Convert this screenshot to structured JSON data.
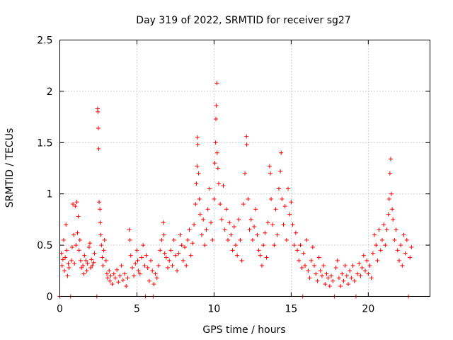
{
  "chart_data": {
    "type": "scatter",
    "title": "Day 319 of 2022, SRMTID for receiver sg27",
    "xlabel": "GPS time / hours",
    "ylabel": "SRMTID / TECUs",
    "xlim": [
      0,
      24
    ],
    "ylim": [
      0,
      2.5
    ],
    "xticks": [
      0,
      5,
      10,
      15,
      20
    ],
    "xtick_labels": [
      "0",
      "5",
      "10",
      "15",
      "20"
    ],
    "yticks": [
      0,
      0.5,
      1,
      1.5,
      2,
      2.5
    ],
    "ytick_labels": [
      "0",
      "0.5",
      "1",
      "1.5",
      "2",
      "2.5"
    ],
    "grid": true,
    "marker": "+",
    "color": "#ff0000",
    "series": [
      {
        "name": "SRMTID",
        "points": [
          [
            0.0,
            0.0
          ],
          [
            0.1,
            0.42
          ],
          [
            0.15,
            0.3
          ],
          [
            0.2,
            0.36
          ],
          [
            0.25,
            0.55
          ],
          [
            0.3,
            0.25
          ],
          [
            0.35,
            0.38
          ],
          [
            0.4,
            0.7
          ],
          [
            0.45,
            0.45
          ],
          [
            0.5,
            0.2
          ],
          [
            0.55,
            0.32
          ],
          [
            0.6,
            0.28
          ],
          [
            0.7,
            0.0
          ],
          [
            0.75,
            0.35
          ],
          [
            0.8,
            0.48
          ],
          [
            0.85,
            0.9
          ],
          [
            0.9,
            0.6
          ],
          [
            0.95,
            0.32
          ],
          [
            1.0,
            0.88
          ],
          [
            1.05,
            0.5
          ],
          [
            1.1,
            0.92
          ],
          [
            1.15,
            0.62
          ],
          [
            1.2,
            0.78
          ],
          [
            1.25,
            0.45
          ],
          [
            1.3,
            0.55
          ],
          [
            1.35,
            0.35
          ],
          [
            1.4,
            0.28
          ],
          [
            1.5,
            0.3
          ],
          [
            1.55,
            0.22
          ],
          [
            1.6,
            0.4
          ],
          [
            1.7,
            0.35
          ],
          [
            1.75,
            0.25
          ],
          [
            1.8,
            0.32
          ],
          [
            1.9,
            0.48
          ],
          [
            1.95,
            0.52
          ],
          [
            2.0,
            0.28
          ],
          [
            2.05,
            0.36
          ],
          [
            2.1,
            0.3
          ],
          [
            2.2,
            0.33
          ],
          [
            2.25,
            0.42
          ],
          [
            2.4,
            0.0
          ],
          [
            2.45,
            1.83
          ],
          [
            2.47,
            1.8
          ],
          [
            2.5,
            1.64
          ],
          [
            2.52,
            1.44
          ],
          [
            2.55,
            0.92
          ],
          [
            2.6,
            0.85
          ],
          [
            2.62,
            0.72
          ],
          [
            2.65,
            0.6
          ],
          [
            2.7,
            0.5
          ],
          [
            2.75,
            0.38
          ],
          [
            2.8,
            0.3
          ],
          [
            2.85,
            0.45
          ],
          [
            2.9,
            0.55
          ],
          [
            3.0,
            0.35
          ],
          [
            3.05,
            0.22
          ],
          [
            3.1,
            0.18
          ],
          [
            3.2,
            0.25
          ],
          [
            3.25,
            0.15
          ],
          [
            3.3,
            0.2
          ],
          [
            3.4,
            0.12
          ],
          [
            3.5,
            0.22
          ],
          [
            3.6,
            0.18
          ],
          [
            3.7,
            0.26
          ],
          [
            3.8,
            0.14
          ],
          [
            3.9,
            0.2
          ],
          [
            4.0,
            0.3
          ],
          [
            4.1,
            0.16
          ],
          [
            4.2,
            0.22
          ],
          [
            4.3,
            0.1
          ],
          [
            4.4,
            0.18
          ],
          [
            4.5,
            0.65
          ],
          [
            4.55,
            0.55
          ],
          [
            4.6,
            0.4
          ],
          [
            4.7,
            0.28
          ],
          [
            4.8,
            0.2
          ],
          [
            4.9,
            0.32
          ],
          [
            5.0,
            0.45
          ],
          [
            5.05,
            0.35
          ],
          [
            5.1,
            0.25
          ],
          [
            5.2,
            0.22
          ],
          [
            5.3,
            0.38
          ],
          [
            5.4,
            0.5
          ],
          [
            5.5,
            0.3
          ],
          [
            5.55,
            0.0
          ],
          [
            5.6,
            0.4
          ],
          [
            5.7,
            0.28
          ],
          [
            5.8,
            0.15
          ],
          [
            5.9,
            0.35
          ],
          [
            6.0,
            0.25
          ],
          [
            6.05,
            0.0
          ],
          [
            6.1,
            0.12
          ],
          [
            6.2,
            0.22
          ],
          [
            6.3,
            0.18
          ],
          [
            6.4,
            0.3
          ],
          [
            6.5,
            0.45
          ],
          [
            6.6,
            0.55
          ],
          [
            6.7,
            0.72
          ],
          [
            6.75,
            0.6
          ],
          [
            6.8,
            0.42
          ],
          [
            6.9,
            0.38
          ],
          [
            7.0,
            0.28
          ],
          [
            7.1,
            0.35
          ],
          [
            7.2,
            0.45
          ],
          [
            7.3,
            0.3
          ],
          [
            7.4,
            0.55
          ],
          [
            7.5,
            0.4
          ],
          [
            7.6,
            0.25
          ],
          [
            7.7,
            0.42
          ],
          [
            7.8,
            0.6
          ],
          [
            7.9,
            0.5
          ],
          [
            8.0,
            0.35
          ],
          [
            8.1,
            0.48
          ],
          [
            8.2,
            0.3
          ],
          [
            8.3,
            0.55
          ],
          [
            8.4,
            0.65
          ],
          [
            8.5,
            0.4
          ],
          [
            8.6,
            0.52
          ],
          [
            8.7,
            0.7
          ],
          [
            8.8,
            0.9
          ],
          [
            8.85,
            1.1
          ],
          [
            8.9,
            1.27
          ],
          [
            8.92,
            1.55
          ],
          [
            8.95,
            1.48
          ],
          [
            9.0,
            1.2
          ],
          [
            9.05,
            0.95
          ],
          [
            9.1,
            0.8
          ],
          [
            9.2,
            0.6
          ],
          [
            9.3,
            0.75
          ],
          [
            9.4,
            0.5
          ],
          [
            9.5,
            0.65
          ],
          [
            9.6,
            0.85
          ],
          [
            9.7,
            1.05
          ],
          [
            9.8,
            0.72
          ],
          [
            9.9,
            0.55
          ],
          [
            10.0,
            0.95
          ],
          [
            10.05,
            1.3
          ],
          [
            10.1,
            1.5
          ],
          [
            10.12,
            1.73
          ],
          [
            10.15,
            1.86
          ],
          [
            10.18,
            2.08
          ],
          [
            10.2,
            1.4
          ],
          [
            10.25,
            1.25
          ],
          [
            10.3,
            1.1
          ],
          [
            10.4,
            0.9
          ],
          [
            10.5,
            0.75
          ],
          [
            10.6,
            1.08
          ],
          [
            10.7,
            0.65
          ],
          [
            10.8,
            0.85
          ],
          [
            10.9,
            0.55
          ],
          [
            11.0,
            0.72
          ],
          [
            11.1,
            0.6
          ],
          [
            11.2,
            0.45
          ],
          [
            11.3,
            0.68
          ],
          [
            11.4,
            0.5
          ],
          [
            11.5,
            0.4
          ],
          [
            11.6,
            0.75
          ],
          [
            11.7,
            0.55
          ],
          [
            11.8,
            0.35
          ],
          [
            11.9,
            0.9
          ],
          [
            12.0,
            1.2
          ],
          [
            12.1,
            1.56
          ],
          [
            12.12,
            1.48
          ],
          [
            12.2,
            0.95
          ],
          [
            12.3,
            0.65
          ],
          [
            12.4,
            0.75
          ],
          [
            12.5,
            0.55
          ],
          [
            12.6,
            0.68
          ],
          [
            12.7,
            0.85
          ],
          [
            12.8,
            0.6
          ],
          [
            12.9,
            0.45
          ],
          [
            13.0,
            0.4
          ],
          [
            13.1,
            0.3
          ],
          [
            13.2,
            0.5
          ],
          [
            13.3,
            0.62
          ],
          [
            13.4,
            0.38
          ],
          [
            13.5,
            0.72
          ],
          [
            13.6,
            1.27
          ],
          [
            13.65,
            1.2
          ],
          [
            13.7,
            0.95
          ],
          [
            13.8,
            0.7
          ],
          [
            13.9,
            0.5
          ],
          [
            14.0,
            0.85
          ],
          [
            14.1,
            0.6
          ],
          [
            14.2,
            1.05
          ],
          [
            14.3,
            1.22
          ],
          [
            14.35,
            1.4
          ],
          [
            14.4,
            0.95
          ],
          [
            14.5,
            0.7
          ],
          [
            14.6,
            0.88
          ],
          [
            14.7,
            0.55
          ],
          [
            14.8,
            1.05
          ],
          [
            14.9,
            0.8
          ],
          [
            15.0,
            0.92
          ],
          [
            15.1,
            0.7
          ],
          [
            15.2,
            0.5
          ],
          [
            15.3,
            0.62
          ],
          [
            15.4,
            0.45
          ],
          [
            15.5,
            0.35
          ],
          [
            15.6,
            0.5
          ],
          [
            15.7,
            0.28
          ],
          [
            15.75,
            0.0
          ],
          [
            15.8,
            0.42
          ],
          [
            15.9,
            0.3
          ],
          [
            16.0,
            0.55
          ],
          [
            16.1,
            0.25
          ],
          [
            16.2,
            0.18
          ],
          [
            16.3,
            0.35
          ],
          [
            16.4,
            0.48
          ],
          [
            16.5,
            0.3
          ],
          [
            16.6,
            0.22
          ],
          [
            16.7,
            0.15
          ],
          [
            16.8,
            0.38
          ],
          [
            16.9,
            0.25
          ],
          [
            17.0,
            0.2
          ],
          [
            17.1,
            0.3
          ],
          [
            17.2,
            0.12
          ],
          [
            17.3,
            0.22
          ],
          [
            17.4,
            0.18
          ],
          [
            17.5,
            0.1
          ],
          [
            17.6,
            0.2
          ],
          [
            17.7,
            0.15
          ],
          [
            17.8,
            0.0
          ],
          [
            17.9,
            0.28
          ],
          [
            18.0,
            0.35
          ],
          [
            18.1,
            0.18
          ],
          [
            18.2,
            0.1
          ],
          [
            18.3,
            0.22
          ],
          [
            18.4,
            0.15
          ],
          [
            18.5,
            0.3
          ],
          [
            18.6,
            0.2
          ],
          [
            18.7,
            0.12
          ],
          [
            18.8,
            0.25
          ],
          [
            18.9,
            0.18
          ],
          [
            19.0,
            0.3
          ],
          [
            19.1,
            0.15
          ],
          [
            19.2,
            0.0
          ],
          [
            19.3,
            0.22
          ],
          [
            19.4,
            0.32
          ],
          [
            19.5,
            0.2
          ],
          [
            19.6,
            0.28
          ],
          [
            19.7,
            0.4
          ],
          [
            19.8,
            0.25
          ],
          [
            19.9,
            0.35
          ],
          [
            20.0,
            0.22
          ],
          [
            20.1,
            0.3
          ],
          [
            20.2,
            0.18
          ],
          [
            20.3,
            0.42
          ],
          [
            20.4,
            0.6
          ],
          [
            20.5,
            0.5
          ],
          [
            20.6,
            0.35
          ],
          [
            20.7,
            0.65
          ],
          [
            20.8,
            0.45
          ],
          [
            20.9,
            0.55
          ],
          [
            21.0,
            0.7
          ],
          [
            21.1,
            0.5
          ],
          [
            21.2,
            0.65
          ],
          [
            21.3,
            0.8
          ],
          [
            21.35,
            0.95
          ],
          [
            21.4,
            1.2
          ],
          [
            21.45,
            1.34
          ],
          [
            21.5,
            1.0
          ],
          [
            21.55,
            0.85
          ],
          [
            21.6,
            0.75
          ],
          [
            21.7,
            0.55
          ],
          [
            21.8,
            0.65
          ],
          [
            21.9,
            0.45
          ],
          [
            22.0,
            0.35
          ],
          [
            22.1,
            0.5
          ],
          [
            22.2,
            0.3
          ],
          [
            22.3,
            0.6
          ],
          [
            22.4,
            0.42
          ],
          [
            22.5,
            0.55
          ],
          [
            22.6,
            0.0
          ],
          [
            22.7,
            0.38
          ],
          [
            22.8,
            0.48
          ]
        ]
      }
    ]
  }
}
